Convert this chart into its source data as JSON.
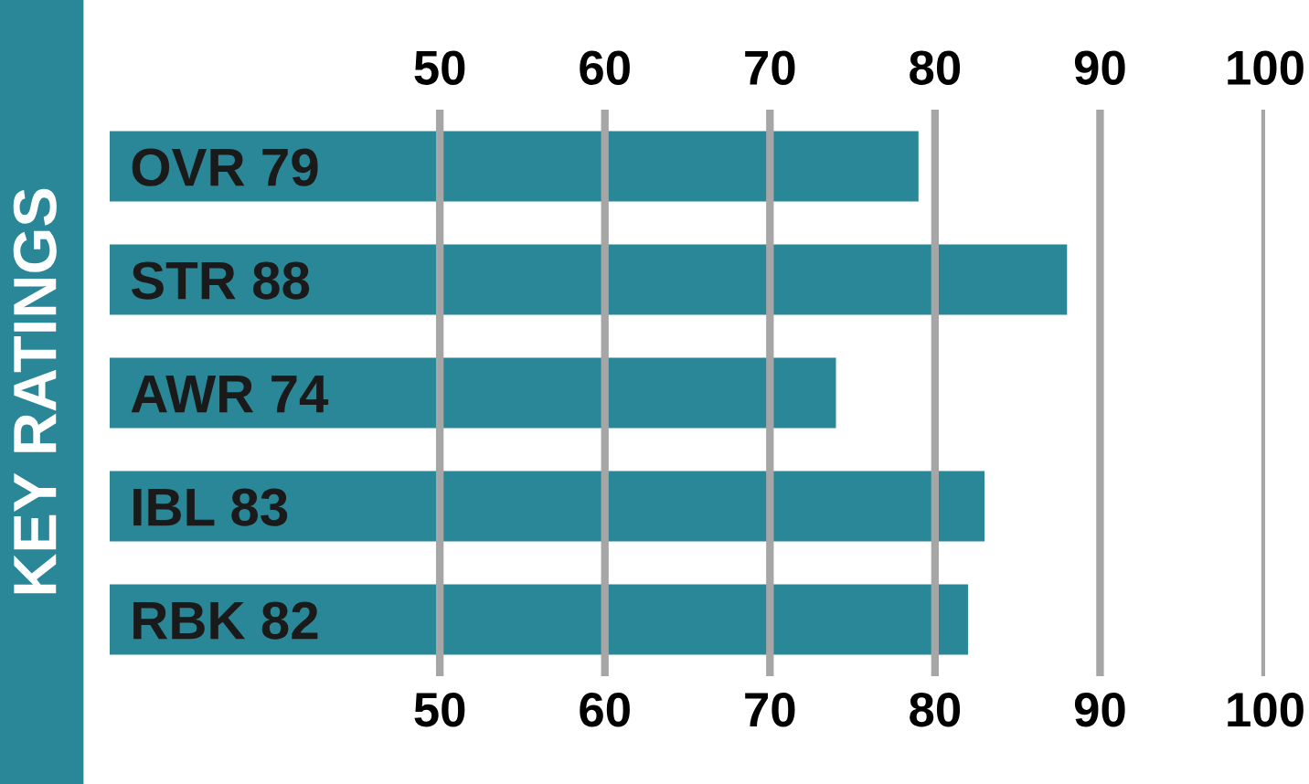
{
  "chart_data": {
    "type": "bar",
    "orientation": "horizontal",
    "title": "KEY RATINGS",
    "categories": [
      "OVR 79",
      "STR 88",
      "AWR 74",
      "IBL 83",
      "RBK 82"
    ],
    "values": [
      79,
      88,
      74,
      83,
      82
    ],
    "color": "#2a8797",
    "xlim": [
      30,
      100
    ],
    "xticks": [
      50,
      60,
      70,
      80,
      90,
      100
    ],
    "x2lim": [
      30,
      100
    ],
    "x2ticks": [
      50,
      60,
      70,
      80,
      90,
      100
    ],
    "grid": "x"
  }
}
